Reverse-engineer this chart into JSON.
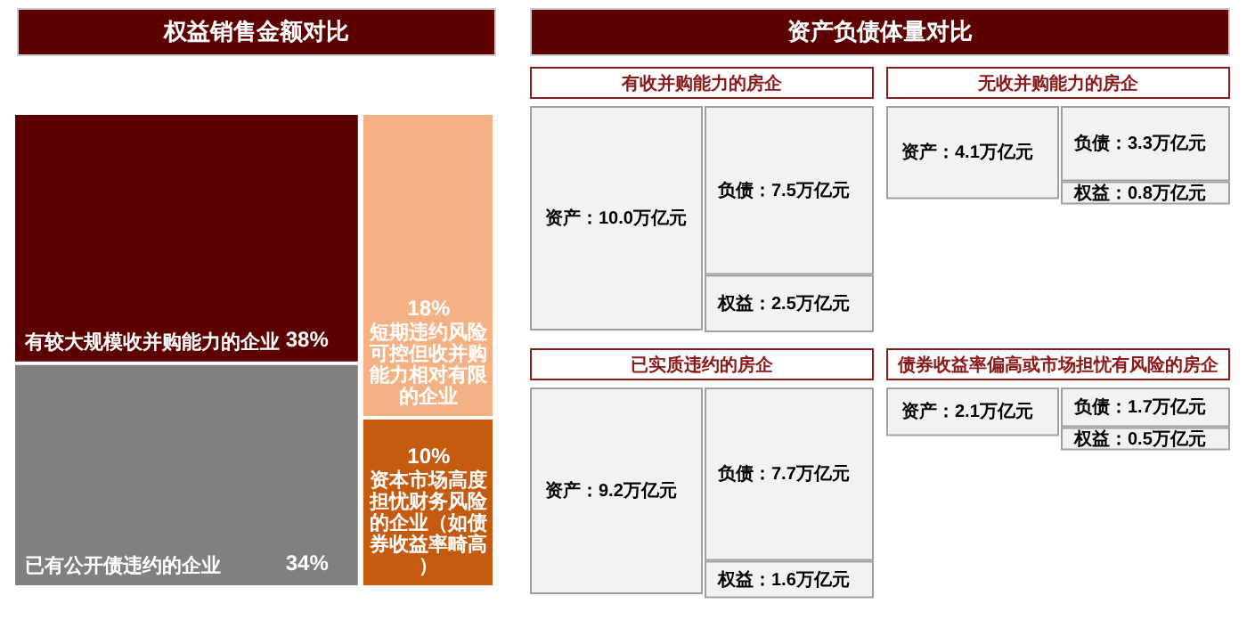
{
  "chart_data": [
    {
      "type": "other",
      "title": "权益销售金额对比",
      "categories": [
        "有较大规模收并购能力的企业",
        "已有公开债违约的企业",
        "短期违约风险可控但收并购能力相对有限的企业",
        "资本市场高度担忧财务风险的企业（如债券收益率畸高）"
      ],
      "values": [
        38,
        34,
        18,
        10
      ],
      "colors": [
        "#5c0000",
        "#808080",
        "#f4b183",
        "#c55a11"
      ],
      "value_labels": [
        "38%",
        "34%",
        "18%",
        "10%"
      ]
    },
    {
      "type": "other",
      "title": "资产负债体量对比"
    },
    {
      "type": "other",
      "title": "有收并购能力的房企",
      "categories": [
        "资产",
        "负债",
        "权益"
      ],
      "values": [
        10.0,
        7.5,
        2.5
      ],
      "value_labels": [
        "：10.0万亿元",
        "：7.5万亿元",
        "：2.5万亿元"
      ]
    },
    {
      "type": "other",
      "title": "无收并购能力的房企",
      "categories": [
        "资产",
        "负债",
        "权益"
      ],
      "values": [
        4.1,
        3.3,
        0.8
      ],
      "value_labels": [
        "：4.1万亿元",
        "：3.3万亿元",
        "：0.8万亿元"
      ]
    },
    {
      "type": "other",
      "title": "已实质违约的房企",
      "categories": [
        "资产",
        "负债",
        "权益"
      ],
      "values": [
        9.2,
        7.7,
        1.6
      ],
      "value_labels": [
        "：9.2万亿元",
        "：7.7万亿元",
        "：1.6万亿元"
      ]
    },
    {
      "type": "other",
      "title": "债券收益率偏高或市场担忧有风险的房企",
      "categories": [
        "资产",
        "负债",
        "权益"
      ],
      "values": [
        2.1,
        1.7,
        0.5
      ],
      "value_labels": [
        "：2.1万亿元",
        "：1.7万亿元",
        "：0.5万亿元"
      ]
    }
  ]
}
